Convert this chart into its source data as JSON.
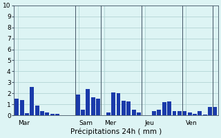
{
  "title": "Précipitations 24h ( mm )",
  "ylim": [
    0,
    10
  ],
  "yticks": [
    0,
    1,
    2,
    3,
    4,
    5,
    6,
    7,
    8,
    9,
    10
  ],
  "background_color": "#ddf4f4",
  "bar_color": "#1a3aaa",
  "grid_color": "#aacece",
  "sep_color": "#445566",
  "values": [
    1.5,
    1.4,
    0.2,
    2.6,
    0.9,
    0.4,
    0.3,
    0.15,
    0.15,
    0.0,
    0.0,
    0.0,
    1.9,
    0.5,
    2.4,
    1.65,
    1.5,
    0.0,
    0.3,
    2.1,
    2.05,
    1.35,
    1.25,
    0.5,
    0.3,
    0.0,
    0.0,
    0.4,
    0.5,
    1.2,
    1.3,
    0.4,
    0.4,
    0.4,
    0.3,
    0.15,
    0.4,
    0.1,
    0.8,
    0.75
  ],
  "day_labels": [
    "Mar",
    "Sam",
    "Mer",
    "Jeu",
    "Ven"
  ],
  "day_sep_indices": [
    0,
    12,
    17,
    25,
    33,
    39
  ]
}
